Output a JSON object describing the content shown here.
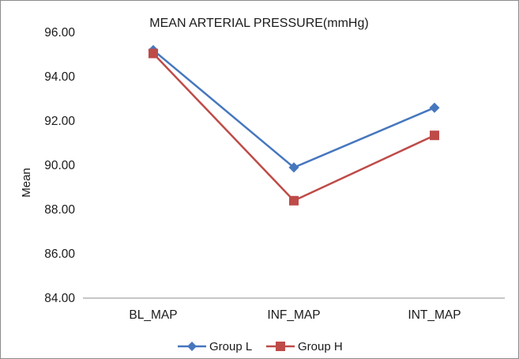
{
  "chart_data": {
    "type": "line",
    "title": "MEAN ARTERIAL PRESSURE(mmHg)",
    "xlabel": "",
    "ylabel": "Mean",
    "categories": [
      "BL_MAP",
      "INF_MAP",
      "INT_MAP"
    ],
    "ylim": [
      84,
      96
    ],
    "yticks": [
      "84.00",
      "86.00",
      "88.00",
      "90.00",
      "92.00",
      "94.00",
      "96.00"
    ],
    "grid": false,
    "legend_position": "bottom",
    "series": [
      {
        "name": "Group L",
        "values": [
          95.2,
          89.9,
          92.6
        ],
        "color": "#4677BE",
        "marker": "diamond"
      },
      {
        "name": "Group H",
        "values": [
          95.05,
          88.4,
          91.35
        ],
        "color": "#BE4B48",
        "marker": "square"
      }
    ]
  }
}
